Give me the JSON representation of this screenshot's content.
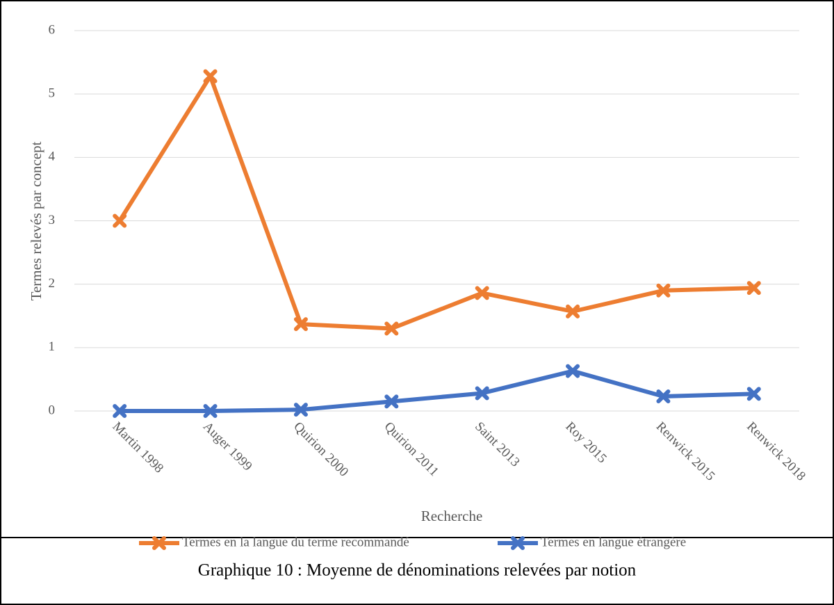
{
  "chart_data": {
    "type": "line",
    "categories": [
      "Martin 1998",
      "Auger 1999",
      "Quirion 2000",
      "Quirion 2011",
      "Saint 2013",
      "Roy 2015",
      "Renwick 2015",
      "Renwick 2018"
    ],
    "series": [
      {
        "name": "Termes en la langue du terme recommandé",
        "color": "#ed7d31",
        "values": [
          3.0,
          5.28,
          1.37,
          1.3,
          1.86,
          1.57,
          1.9,
          1.94
        ]
      },
      {
        "name": "Termes en langue étrangère",
        "color": "#4472c4",
        "values": [
          0.0,
          0.0,
          0.02,
          0.15,
          0.28,
          0.63,
          0.23,
          0.27
        ]
      }
    ],
    "ylim": [
      0,
      6
    ],
    "yticks": [
      0,
      1,
      2,
      3,
      4,
      5,
      6
    ],
    "grid": true,
    "ylabel": "Termes relevés par concept",
    "xlabel": "Recherche",
    "legend": "bottom"
  },
  "caption": "Graphique 10 : Moyenne de dénominations relevées par notion"
}
